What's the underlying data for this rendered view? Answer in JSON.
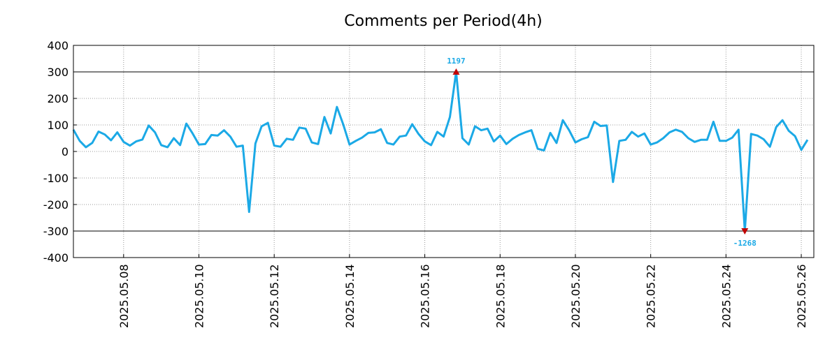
{
  "chart_data": {
    "type": "line",
    "title": "Comments per Period(4h)",
    "xlabel": "",
    "ylabel": "",
    "x_start": "2025.05.06 16:00",
    "x_end": "2025.05.26 08:00",
    "x_step": "4h",
    "xlim": [
      "2025.05.06 16:00",
      "2025.05.26 08:00"
    ],
    "ylim": [
      -400,
      400
    ],
    "yticks": [
      400,
      300,
      200,
      100,
      0,
      -100,
      -200,
      -300,
      -400
    ],
    "ytick_labels": [
      "400",
      "300",
      "200",
      "100",
      "0",
      "-100",
      "-200",
      "-300",
      "-400"
    ],
    "xtick_labels": [
      "2025.05.08",
      "2025.05.10",
      "2025.05.12",
      "2025.05.14",
      "2025.05.16",
      "2025.05.18",
      "2025.05.20",
      "2025.05.22",
      "2025.05.24",
      "2025.05.26"
    ],
    "grid": true,
    "clip_lines": [
      300,
      -300
    ],
    "series": [
      {
        "color": "#1ba9e6",
        "values": [
          82,
          40,
          16,
          32,
          75,
          64,
          42,
          72,
          36,
          22,
          38,
          45,
          98,
          72,
          24,
          16,
          50,
          24,
          105,
          68,
          26,
          28,
          62,
          60,
          80,
          56,
          18,
          22,
          -228,
          30,
          95,
          108,
          22,
          18,
          48,
          44,
          90,
          86,
          34,
          28,
          130,
          68,
          168,
          102,
          26,
          40,
          52,
          70,
          72,
          84,
          32,
          26,
          56,
          60,
          103,
          66,
          38,
          24,
          74,
          56,
          130,
          300,
          50,
          26,
          95,
          80,
          86,
          38,
          60,
          28,
          48,
          62,
          72,
          80,
          10,
          4,
          70,
          32,
          118,
          80,
          34,
          46,
          54,
          112,
          96,
          98,
          -115,
          40,
          44,
          74,
          56,
          68,
          26,
          34,
          50,
          72,
          82,
          74,
          50,
          36,
          44,
          44,
          112,
          40,
          40,
          52,
          82,
          -300,
          66,
          60,
          46,
          18,
          92,
          118,
          78,
          58,
          6,
          44
        ]
      }
    ],
    "annotations": [
      {
        "text": "1197",
        "x_index": 61,
        "y": 300,
        "marker": "up-triangle",
        "color": "#c00000",
        "text_color": "#1ba9e6"
      },
      {
        "text": "-1268",
        "x_index": 107,
        "y": -300,
        "marker": "down-triangle",
        "color": "#c00000",
        "text_color": "#1ba9e6"
      }
    ]
  }
}
